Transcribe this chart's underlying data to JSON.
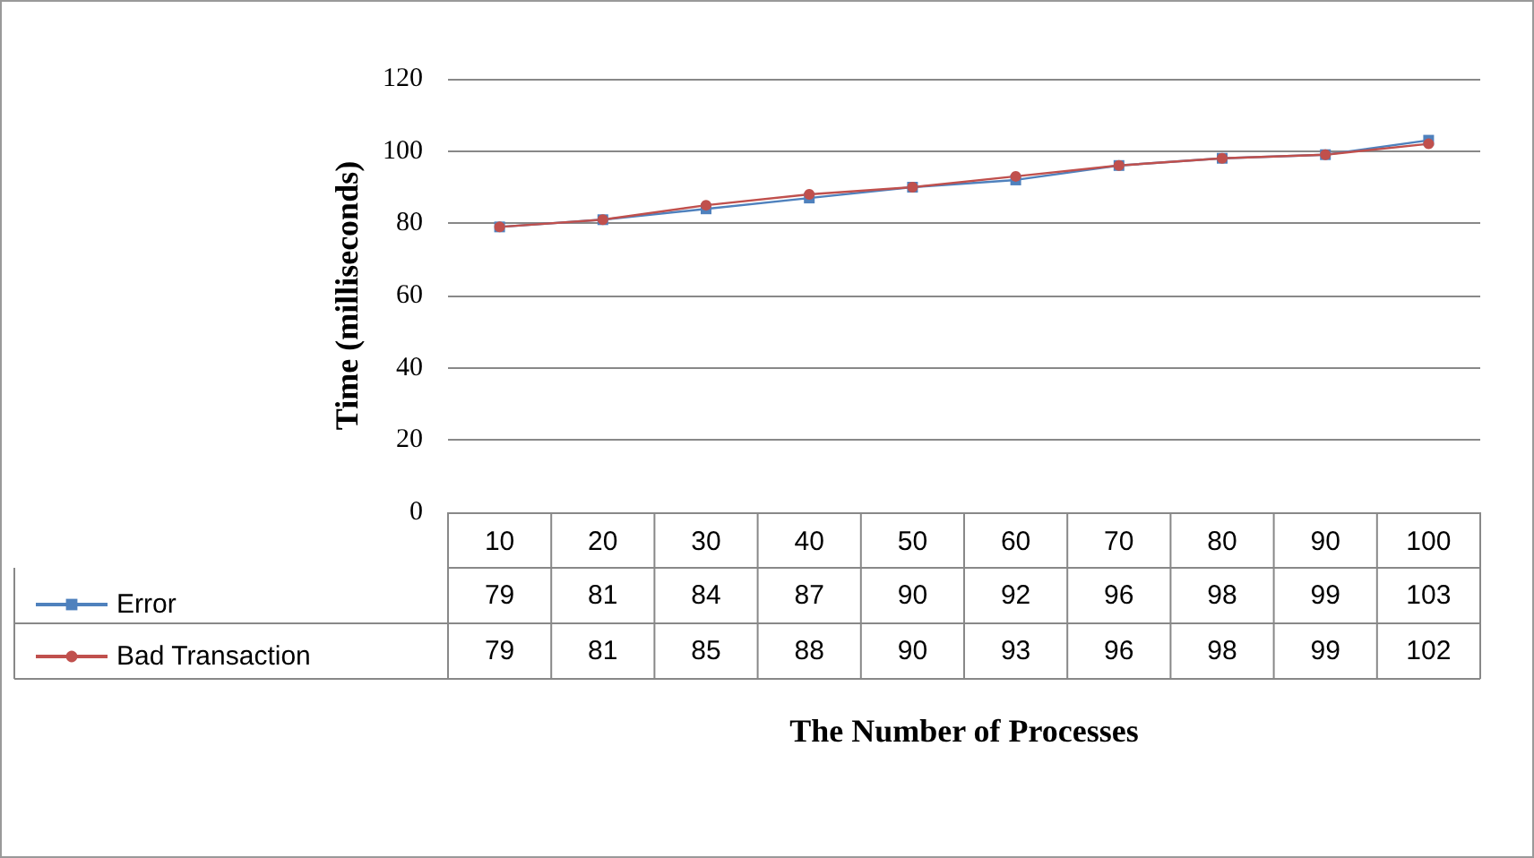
{
  "chart_data": {
    "type": "line",
    "xlabel": "The Number of Processes",
    "ylabel": "Time (milliseconds)",
    "categories": [
      "10",
      "20",
      "30",
      "40",
      "50",
      "60",
      "70",
      "80",
      "90",
      "100"
    ],
    "series": [
      {
        "name": "Error",
        "color": "#4f81bd",
        "marker": "square",
        "values": [
          79,
          81,
          84,
          87,
          90,
          92,
          96,
          98,
          99,
          103
        ]
      },
      {
        "name": "Bad Transaction",
        "color": "#c0504d",
        "marker": "circle",
        "values": [
          79,
          81,
          85,
          88,
          90,
          93,
          96,
          98,
          99,
          102
        ]
      }
    ],
    "ylim": [
      0,
      120
    ],
    "yticks": [
      0,
      20,
      40,
      60,
      80,
      100,
      120
    ],
    "grid": "y",
    "legend": "bottom",
    "data_labels": true
  }
}
